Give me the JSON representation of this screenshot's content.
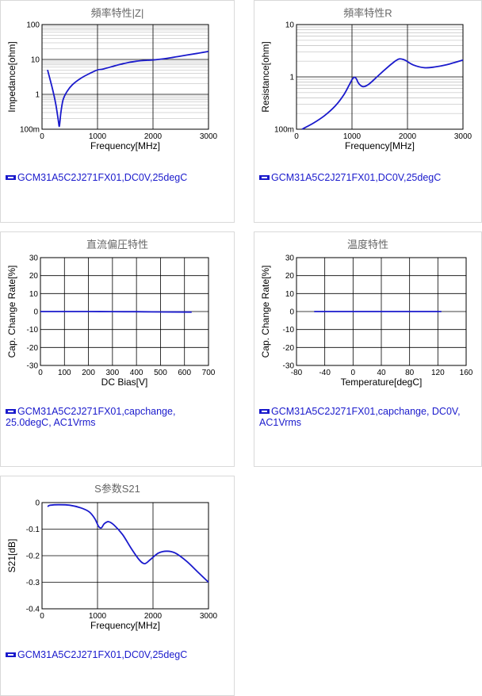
{
  "colors": {
    "series": "#1a1acc",
    "grid_major": "#000000",
    "grid_minor": "#b0b0b0",
    "text": "#000000"
  },
  "panels": [
    {
      "title": "頻率特性|Z|",
      "legend": [
        "GCM31A5C2J271FX01,DC0V,25degC"
      ]
    },
    {
      "title": "頻率特性R",
      "legend": [
        "GCM31A5C2J271FX01,DC0V,25degC"
      ]
    },
    {
      "title": "直流偏圧特性",
      "legend": [
        "GCM31A5C2J271FX01,capchange,",
        "25.0degC, AC1Vrms"
      ]
    },
    {
      "title": "温度特性",
      "legend": [
        "GCM31A5C2J271FX01,capchange, DC0V,",
        "AC1Vrms"
      ]
    },
    {
      "title": "S参数S21",
      "legend": [
        "GCM31A5C2J271FX01,DC0V,25degC"
      ]
    }
  ],
  "chart_data": [
    {
      "type": "line",
      "title": "頻率特性|Z|",
      "xlabel": "Frequency[MHz]",
      "ylabel": "Impedance[ohm]",
      "xlim": [
        0,
        3000
      ],
      "ylim": [
        0.1,
        100
      ],
      "yscale": "log",
      "grid": true,
      "xticks": [
        0,
        1000,
        2000,
        3000
      ],
      "xtick_labels": [
        "0",
        "1000",
        "2000",
        "3000"
      ],
      "yticks": [
        0.1,
        1,
        10,
        100
      ],
      "ytick_labels": [
        "100m",
        "1",
        "10",
        "100"
      ],
      "series": [
        {
          "name": "GCM31A5C2J271FX01,DC0V,25degC",
          "x": [
            100,
            150,
            200,
            250,
            280,
            300,
            310,
            320,
            340,
            380,
            450,
            550,
            700,
            850,
            1000,
            1100,
            1300,
            1500,
            1700,
            1900,
            2000,
            2200,
            2500,
            2800,
            3000
          ],
          "y": [
            5.0,
            2.5,
            1.2,
            0.5,
            0.25,
            0.15,
            0.12,
            0.15,
            0.3,
            0.7,
            1.2,
            1.9,
            2.9,
            3.9,
            5.0,
            5.3,
            6.5,
            7.8,
            8.9,
            9.5,
            9.7,
            10.5,
            12.5,
            15.0,
            17.0
          ]
        }
      ]
    },
    {
      "type": "line",
      "title": "頻率特性R",
      "xlabel": "Frequency[MHz]",
      "ylabel": "Resistance[ohm]",
      "xlim": [
        0,
        3000
      ],
      "ylim": [
        0.1,
        10
      ],
      "yscale": "log",
      "grid": true,
      "xticks": [
        0,
        1000,
        2000,
        3000
      ],
      "xtick_labels": [
        "0",
        "1000",
        "2000",
        "3000"
      ],
      "yticks": [
        0.1,
        1,
        10
      ],
      "ytick_labels": [
        "100m",
        "1",
        "10"
      ],
      "series": [
        {
          "name": "GCM31A5C2J271FX01,DC0V,25degC",
          "x": [
            100,
            300,
            500,
            700,
            850,
            950,
            1020,
            1070,
            1120,
            1200,
            1300,
            1450,
            1600,
            1750,
            1850,
            1950,
            2100,
            2300,
            2500,
            2700,
            3000
          ],
          "y": [
            0.1,
            0.13,
            0.18,
            0.28,
            0.45,
            0.7,
            0.95,
            0.95,
            0.75,
            0.65,
            0.72,
            1.0,
            1.4,
            1.9,
            2.2,
            2.1,
            1.7,
            1.5,
            1.55,
            1.7,
            2.1
          ]
        }
      ]
    },
    {
      "type": "line",
      "title": "直流偏圧特性",
      "xlabel": "DC Bias[V]",
      "ylabel": "Cap. Change Rate[%]",
      "xlim": [
        0,
        700
      ],
      "ylim": [
        -30,
        30
      ],
      "grid": true,
      "xticks": [
        0,
        100,
        200,
        300,
        400,
        500,
        600,
        700
      ],
      "xtick_labels": [
        "0",
        "100",
        "200",
        "300",
        "400",
        "500",
        "600",
        "700"
      ],
      "yticks": [
        -30,
        -20,
        -10,
        0,
        10,
        20,
        30
      ],
      "ytick_labels": [
        "-30",
        "-20",
        "-10",
        "0",
        "10",
        "20",
        "30"
      ],
      "series": [
        {
          "name": "GCM31A5C2J271FX01,capchange,25.0degC, AC1Vrms",
          "x": [
            0,
            100,
            200,
            300,
            400,
            500,
            630
          ],
          "y": [
            0,
            0,
            0,
            -0.05,
            -0.1,
            -0.2,
            -0.3
          ]
        }
      ]
    },
    {
      "type": "line",
      "title": "温度特性",
      "xlabel": "Temperature[degC]",
      "ylabel": "Cap. Change Rate[%]",
      "xlim": [
        -80,
        160
      ],
      "ylim": [
        -30,
        30
      ],
      "grid": true,
      "xticks": [
        -80,
        -40,
        0,
        40,
        80,
        120,
        160
      ],
      "xtick_labels": [
        "-80",
        "-40",
        "0",
        "40",
        "80",
        "120",
        "160"
      ],
      "yticks": [
        -30,
        -20,
        -10,
        0,
        10,
        20,
        30
      ],
      "ytick_labels": [
        "-30",
        "-20",
        "-10",
        "0",
        "10",
        "20",
        "30"
      ],
      "series": [
        {
          "name": "GCM31A5C2J271FX01,capchange, DC0V, AC1Vrms",
          "x": [
            -55,
            0,
            25,
            60,
            125
          ],
          "y": [
            0,
            0,
            0,
            0,
            0
          ]
        }
      ]
    },
    {
      "type": "line",
      "title": "S参数S21",
      "xlabel": "Frequency[MHz]",
      "ylabel": "S21[dB]",
      "xlim": [
        0,
        3000
      ],
      "ylim": [
        -0.4,
        0
      ],
      "grid": true,
      "xticks": [
        0,
        1000,
        2000,
        3000
      ],
      "xtick_labels": [
        "0",
        "1000",
        "2000",
        "3000"
      ],
      "yticks": [
        -0.4,
        -0.3,
        -0.2,
        -0.1,
        0
      ],
      "ytick_labels": [
        "-0.4",
        "-0.3",
        "-0.2",
        "-0.1",
        "0"
      ],
      "series": [
        {
          "name": "GCM31A5C2J271FX01,DC0V,25degC",
          "x": [
            100,
            150,
            300,
            500,
            700,
            850,
            950,
            1020,
            1070,
            1120,
            1200,
            1300,
            1450,
            1600,
            1750,
            1850,
            1950,
            2100,
            2250,
            2400,
            2600,
            2800,
            3000
          ],
          "y": [
            -0.015,
            -0.01,
            -0.008,
            -0.01,
            -0.02,
            -0.035,
            -0.06,
            -0.09,
            -0.095,
            -0.08,
            -0.072,
            -0.085,
            -0.12,
            -0.17,
            -0.215,
            -0.23,
            -0.215,
            -0.19,
            -0.183,
            -0.19,
            -0.22,
            -0.26,
            -0.3
          ]
        }
      ]
    }
  ]
}
